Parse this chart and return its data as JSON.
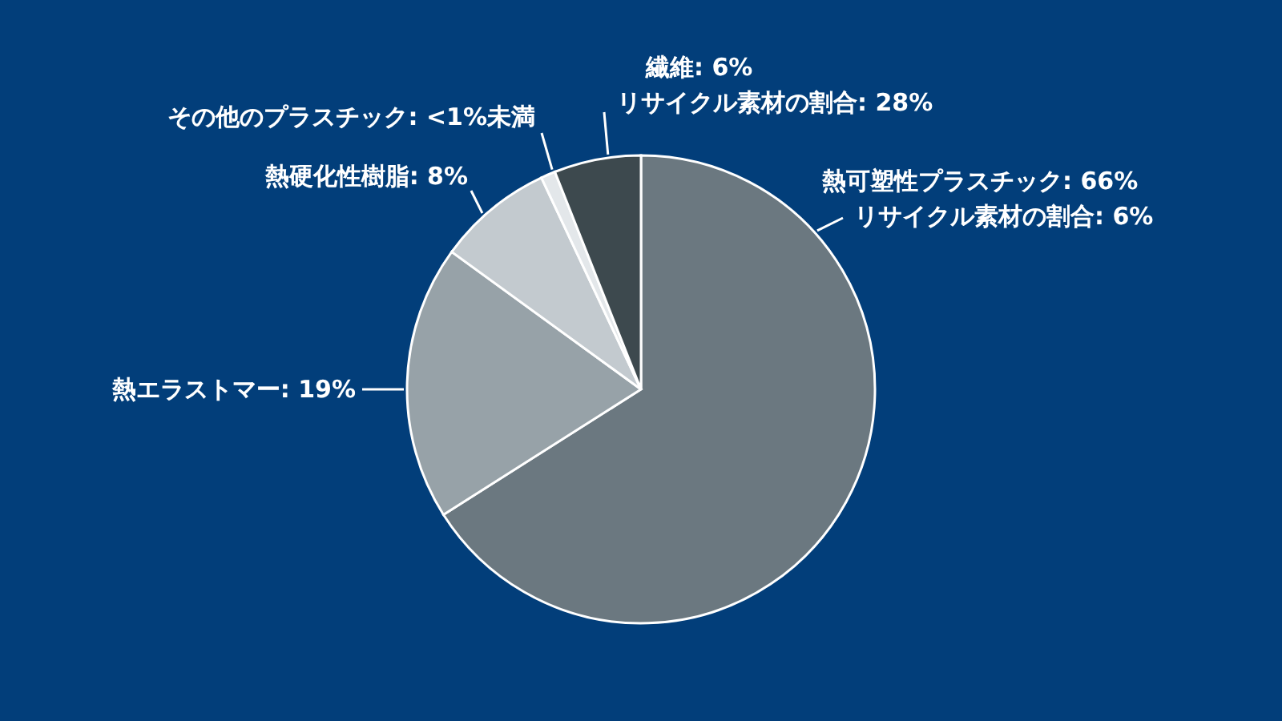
{
  "chart_data": {
    "type": "pie",
    "categories": [
      "熱可塑性プラスチック",
      "熱エラストマー",
      "熱硬化性樹脂",
      "その他のプラスチック",
      "繊維"
    ],
    "values": [
      66,
      19,
      8,
      1,
      6
    ],
    "value_labels": [
      "66%",
      "19%",
      "8%",
      "<1%未満",
      "6%"
    ],
    "colors": [
      "#6b7880",
      "#97a2a8",
      "#c3cacf",
      "#e3e7ea",
      "#3d494e"
    ],
    "annotations": [
      {
        "text": "リサイクル素材の割合: 6%",
        "x": "熱可塑性プラスチック"
      },
      {
        "text": "リサイクル素材の割合: 28%",
        "x": "繊維"
      }
    ]
  }
}
